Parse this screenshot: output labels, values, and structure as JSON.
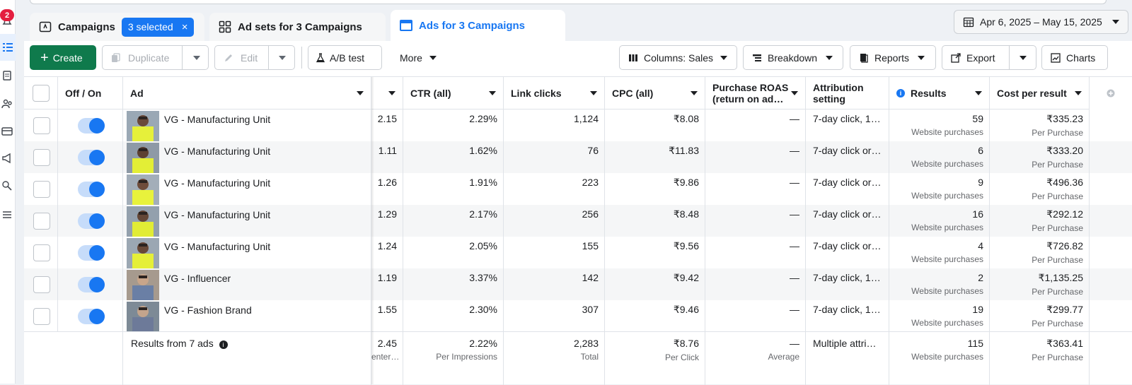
{
  "sidebar": {
    "notification_count": "2"
  },
  "tabs": [
    {
      "label": "Campaigns",
      "icon": "campaign-folder-icon"
    },
    {
      "label": "Ad sets for 3 Campaigns",
      "icon": "adsets-grid-icon"
    },
    {
      "label": "Ads for 3 Campaigns",
      "icon": "ads-window-icon"
    }
  ],
  "selection_badge": {
    "label": "3 selected",
    "clear": "×"
  },
  "date_range": "Apr 6, 2025 – May 15, 2025",
  "toolbar": {
    "create": "Create",
    "duplicate": "Duplicate",
    "edit": "Edit",
    "ab_test": "A/B test",
    "more": "More",
    "columns": "Columns: Sales",
    "breakdown": "Breakdown",
    "reports": "Reports",
    "export": "Export",
    "charts": "Charts"
  },
  "columns": {
    "off_on": "Off / On",
    "ad": "Ad",
    "ctr": "CTR (all)",
    "link_clicks": "Link clicks",
    "cpc": "CPC (all)",
    "roas_1": "Purchase ROAS",
    "roas_2": "(return on ad…",
    "attr_1": "Attribution",
    "attr_2": "setting",
    "results": "Results",
    "cost": "Cost per result"
  },
  "rows": [
    {
      "name": "VG - Manufacturing Unit",
      "hidden": "2.15",
      "ctr": "2.29%",
      "clicks": "1,124",
      "cpc": "₹8.08",
      "roas": "—",
      "attr": "7-day click, 1…",
      "results": "59",
      "results_sub": "Website purchases",
      "cost": "₹335.23",
      "cost_sub": "Per Purchase"
    },
    {
      "name": "VG - Manufacturing Unit",
      "hidden": "1.11",
      "ctr": "1.62%",
      "clicks": "76",
      "cpc": "₹11.83",
      "roas": "—",
      "attr": "7-day click or…",
      "results": "6",
      "results_sub": "Website purchases",
      "cost": "₹333.20",
      "cost_sub": "Per Purchase"
    },
    {
      "name": "VG - Manufacturing Unit",
      "hidden": "1.26",
      "ctr": "1.91%",
      "clicks": "223",
      "cpc": "₹9.86",
      "roas": "—",
      "attr": "7-day click or…",
      "results": "9",
      "results_sub": "Website purchases",
      "cost": "₹496.36",
      "cost_sub": "Per Purchase"
    },
    {
      "name": "VG - Manufacturing Unit",
      "hidden": "1.29",
      "ctr": "2.17%",
      "clicks": "256",
      "cpc": "₹8.48",
      "roas": "—",
      "attr": "7-day click or…",
      "results": "16",
      "results_sub": "Website purchases",
      "cost": "₹292.12",
      "cost_sub": "Per Purchase"
    },
    {
      "name": "VG - Manufacturing Unit",
      "hidden": "1.24",
      "ctr": "2.05%",
      "clicks": "155",
      "cpc": "₹9.56",
      "roas": "—",
      "attr": "7-day click or…",
      "results": "4",
      "results_sub": "Website purchases",
      "cost": "₹726.82",
      "cost_sub": "Per Purchase"
    },
    {
      "name": "VG - Influencer",
      "hidden": "1.19",
      "ctr": "3.37%",
      "clicks": "142",
      "cpc": "₹9.42",
      "roas": "—",
      "attr": "7-day click, 1…",
      "results": "2",
      "results_sub": "Website purchases",
      "cost": "₹1,135.25",
      "cost_sub": "Per Purchase"
    },
    {
      "name": "VG - Fashion Brand",
      "hidden": "1.55",
      "ctr": "2.30%",
      "clicks": "307",
      "cpc": "₹9.46",
      "roas": "—",
      "attr": "7-day click, 1…",
      "results": "19",
      "results_sub": "Website purchases",
      "cost": "₹299.77",
      "cost_sub": "Per Purchase"
    }
  ],
  "totals": {
    "label": "Results from 7 ads",
    "hidden": "2.45",
    "hidden_sub": "enter…",
    "ctr": "2.22%",
    "ctr_sub": "Per Impressions",
    "clicks": "2,283",
    "clicks_sub": "Total",
    "cpc": "₹8.76",
    "cpc_sub": "Per Click",
    "roas": "—",
    "roas_sub": "Average",
    "attr": "Multiple attri…",
    "results": "115",
    "results_sub": "Website purchases",
    "cost": "₹363.41",
    "cost_sub": "Per Purchase"
  },
  "colors": {
    "accent": "#1877f2",
    "create_green": "#0f7a4c",
    "badge_red": "#e41e3f"
  }
}
